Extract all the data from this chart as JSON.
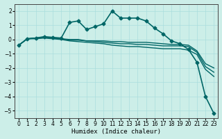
{
  "bg_color": "#cceee8",
  "grid_color": "#aadddd",
  "line_color": "#006666",
  "xlabel": "Humidex (Indice chaleur)",
  "xlim": [
    -0.5,
    23.5
  ],
  "ylim": [
    -5.5,
    2.5
  ],
  "xticks": [
    0,
    1,
    2,
    3,
    4,
    5,
    6,
    7,
    8,
    9,
    10,
    11,
    12,
    13,
    14,
    15,
    16,
    17,
    18,
    19,
    20,
    21,
    22,
    23
  ],
  "yticks": [
    -5,
    -4,
    -3,
    -2,
    -1,
    0,
    1,
    2
  ],
  "series": [
    {
      "x": [
        0,
        1,
        2,
        3,
        4,
        5,
        6,
        7,
        8,
        9,
        10,
        11,
        12,
        13,
        14,
        15,
        16,
        17,
        18,
        19,
        20,
        21,
        22,
        23
      ],
      "y": [
        -0.4,
        0.05,
        0.1,
        0.2,
        0.15,
        0.1,
        1.2,
        1.3,
        0.7,
        0.9,
        1.1,
        2.0,
        1.5,
        1.5,
        1.5,
        1.3,
        0.8,
        0.4,
        -0.1,
        -0.3,
        -0.7,
        -1.6,
        -4.0,
        -5.2
      ],
      "marker": "D",
      "markersize": 2.5,
      "linewidth": 1.2
    },
    {
      "x": [
        0,
        1,
        2,
        3,
        4,
        5,
        6,
        7,
        8,
        9,
        10,
        11,
        12,
        13,
        14,
        15,
        16,
        17,
        18,
        19,
        20,
        21,
        22,
        23
      ],
      "y": [
        -0.4,
        0.05,
        0.1,
        0.15,
        0.1,
        0.05,
        0.0,
        0.0,
        -0.1,
        -0.1,
        -0.1,
        -0.15,
        -0.15,
        -0.2,
        -0.2,
        -0.2,
        -0.25,
        -0.3,
        -0.35,
        -0.35,
        -0.4,
        -0.8,
        -1.7,
        -2.0
      ],
      "marker": null,
      "markersize": 0,
      "linewidth": 1.0
    },
    {
      "x": [
        0,
        1,
        2,
        3,
        4,
        5,
        6,
        7,
        8,
        9,
        10,
        11,
        12,
        13,
        14,
        15,
        16,
        17,
        18,
        19,
        20,
        21,
        22,
        23
      ],
      "y": [
        -0.4,
        0.05,
        0.1,
        0.15,
        0.1,
        0.05,
        -0.05,
        -0.05,
        -0.1,
        -0.15,
        -0.2,
        -0.25,
        -0.3,
        -0.3,
        -0.35,
        -0.35,
        -0.4,
        -0.45,
        -0.45,
        -0.45,
        -0.5,
        -0.9,
        -1.9,
        -2.3
      ],
      "marker": null,
      "markersize": 0,
      "linewidth": 1.0
    },
    {
      "x": [
        0,
        1,
        2,
        3,
        4,
        5,
        6,
        7,
        8,
        9,
        10,
        11,
        12,
        13,
        14,
        15,
        16,
        17,
        18,
        19,
        20,
        21,
        22,
        23
      ],
      "y": [
        -0.4,
        0.05,
        0.05,
        0.1,
        0.05,
        0.0,
        -0.1,
        -0.15,
        -0.2,
        -0.25,
        -0.3,
        -0.4,
        -0.45,
        -0.5,
        -0.5,
        -0.55,
        -0.6,
        -0.65,
        -0.65,
        -0.65,
        -0.75,
        -1.05,
        -2.1,
        -2.6
      ],
      "marker": null,
      "markersize": 0,
      "linewidth": 1.0
    }
  ]
}
